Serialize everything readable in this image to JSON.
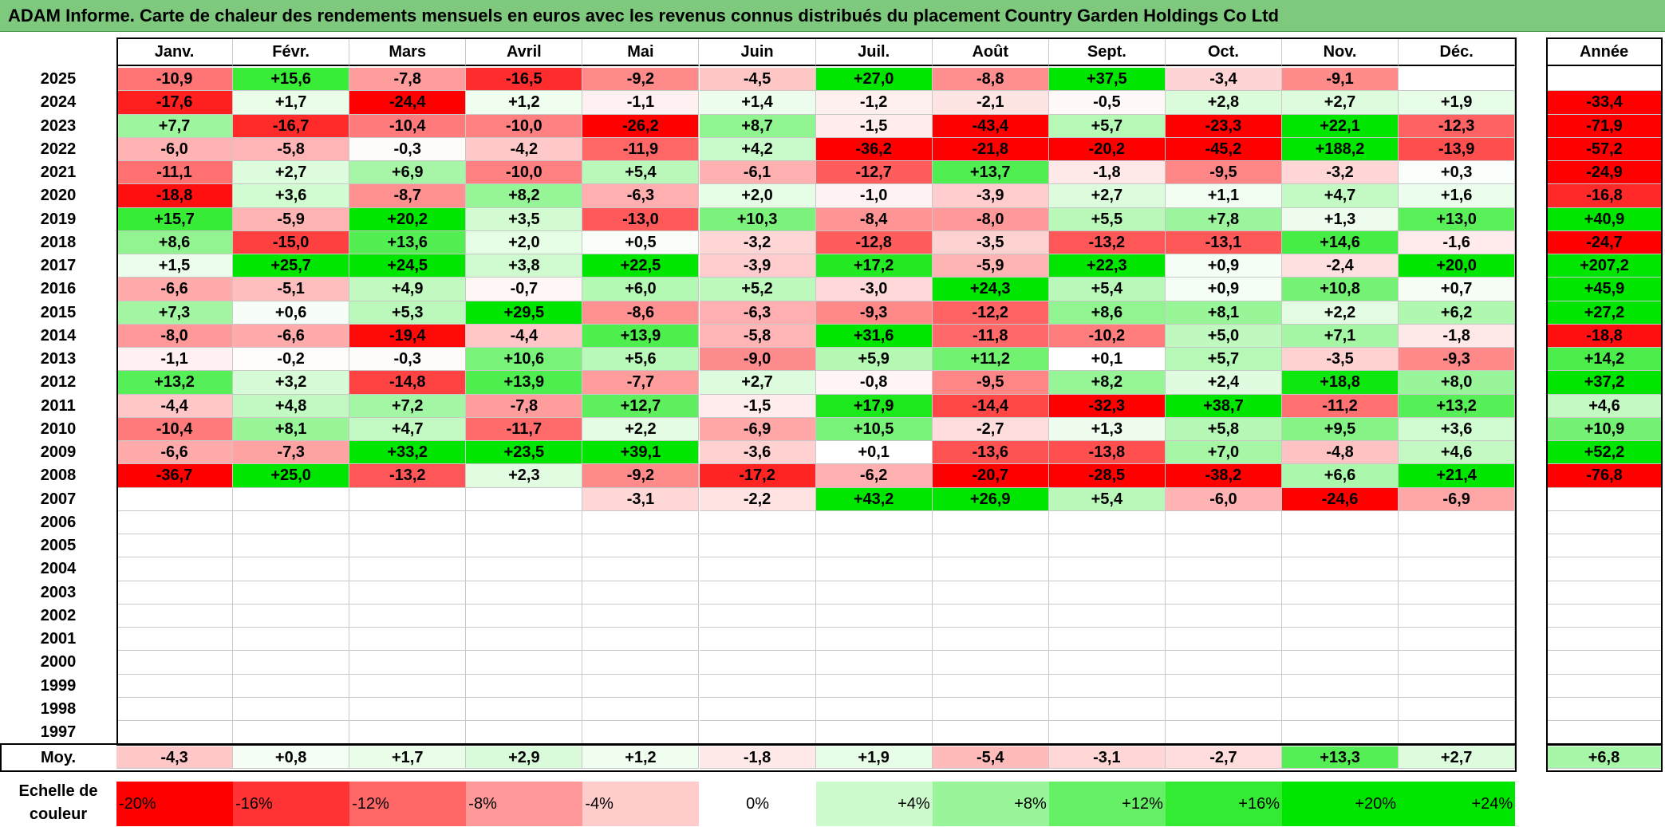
{
  "title": "ADAM Informe. Carte de chaleur des rendements mensuels en euros avec les revenus connus distribués du placement Country Garden Holdings Co Ltd",
  "chart_data": {
    "type": "heatmap",
    "months": [
      "Janv.",
      "Févr.",
      "Mars",
      "Avril",
      "Mai",
      "Juin",
      "Juil.",
      "Août",
      "Sept.",
      "Oct.",
      "Nov.",
      "Déc."
    ],
    "year_header": "Année",
    "rows": [
      {
        "year": "2025",
        "values": [
          "-10,9",
          "+15,6",
          "-7,8",
          "-16,5",
          "-9,2",
          "-4,5",
          "+27,0",
          "-8,8",
          "+37,5",
          "-3,4",
          "-9,1",
          ""
        ],
        "annual": ""
      },
      {
        "year": "2024",
        "values": [
          "-17,6",
          "+1,7",
          "-24,4",
          "+1,2",
          "-1,1",
          "+1,4",
          "-1,2",
          "-2,1",
          "-0,5",
          "+2,8",
          "+2,7",
          "+1,9"
        ],
        "annual": "-33,4"
      },
      {
        "year": "2023",
        "values": [
          "+7,7",
          "-16,7",
          "-10,4",
          "-10,0",
          "-26,2",
          "+8,7",
          "-1,5",
          "-43,4",
          "+5,7",
          "-23,3",
          "+22,1",
          "-12,3"
        ],
        "annual": "-71,9"
      },
      {
        "year": "2022",
        "values": [
          "-6,0",
          "-5,8",
          "-0,3",
          "-4,2",
          "-11,9",
          "+4,2",
          "-36,2",
          "-21,8",
          "-20,2",
          "-45,2",
          "+188,2",
          "-13,9"
        ],
        "annual": "-57,2"
      },
      {
        "year": "2021",
        "values": [
          "-11,1",
          "+2,7",
          "+6,9",
          "-10,0",
          "+5,4",
          "-6,1",
          "-12,7",
          "+13,7",
          "-1,8",
          "-9,5",
          "-3,2",
          "+0,3"
        ],
        "annual": "-24,9"
      },
      {
        "year": "2020",
        "values": [
          "-18,8",
          "+3,6",
          "-8,7",
          "+8,2",
          "-6,3",
          "+2,0",
          "-1,0",
          "-3,9",
          "+2,7",
          "+1,1",
          "+4,7",
          "+1,6"
        ],
        "annual": "-16,8"
      },
      {
        "year": "2019",
        "values": [
          "+15,7",
          "-5,9",
          "+20,2",
          "+3,5",
          "-13,0",
          "+10,3",
          "-8,4",
          "-8,0",
          "+5,5",
          "+7,8",
          "+1,3",
          "+13,0"
        ],
        "annual": "+40,9"
      },
      {
        "year": "2018",
        "values": [
          "+8,6",
          "-15,0",
          "+13,6",
          "+2,0",
          "+0,5",
          "-3,2",
          "-12,8",
          "-3,5",
          "-13,2",
          "-13,1",
          "+14,6",
          "-1,6"
        ],
        "annual": "-24,7"
      },
      {
        "year": "2017",
        "values": [
          "+1,5",
          "+25,7",
          "+24,5",
          "+3,8",
          "+22,5",
          "-3,9",
          "+17,2",
          "-5,9",
          "+22,3",
          "+0,9",
          "-2,4",
          "+20,0"
        ],
        "annual": "+207,2"
      },
      {
        "year": "2016",
        "values": [
          "-6,6",
          "-5,1",
          "+4,9",
          "-0,7",
          "+6,0",
          "+5,2",
          "-3,0",
          "+24,3",
          "+5,4",
          "+0,9",
          "+10,8",
          "+0,7"
        ],
        "annual": "+45,9"
      },
      {
        "year": "2015",
        "values": [
          "+7,3",
          "+0,6",
          "+5,3",
          "+29,5",
          "-8,6",
          "-6,3",
          "-9,3",
          "-12,2",
          "+8,6",
          "+8,1",
          "+2,2",
          "+6,2"
        ],
        "annual": "+27,2"
      },
      {
        "year": "2014",
        "values": [
          "-8,0",
          "-6,6",
          "-19,4",
          "-4,4",
          "+13,9",
          "-5,8",
          "+31,6",
          "-11,8",
          "-10,2",
          "+5,0",
          "+7,1",
          "-1,8"
        ],
        "annual": "-18,8"
      },
      {
        "year": "2013",
        "values": [
          "-1,1",
          "-0,2",
          "-0,3",
          "+10,6",
          "+5,6",
          "-9,0",
          "+5,9",
          "+11,2",
          "+0,1",
          "+5,7",
          "-3,5",
          "-9,3"
        ],
        "annual": "+14,2"
      },
      {
        "year": "2012",
        "values": [
          "+13,2",
          "+3,2",
          "-14,8",
          "+13,9",
          "-7,7",
          "+2,7",
          "-0,8",
          "-9,5",
          "+8,2",
          "+2,4",
          "+18,8",
          "+8,0"
        ],
        "annual": "+37,2"
      },
      {
        "year": "2011",
        "values": [
          "-4,4",
          "+4,8",
          "+7,2",
          "-7,8",
          "+12,7",
          "-1,5",
          "+17,9",
          "-14,4",
          "-32,3",
          "+38,7",
          "-11,2",
          "+13,2"
        ],
        "annual": "+4,6"
      },
      {
        "year": "2010",
        "values": [
          "-10,4",
          "+8,1",
          "+4,7",
          "-11,7",
          "+2,2",
          "-6,9",
          "+10,5",
          "-2,7",
          "+1,3",
          "+5,8",
          "+9,5",
          "+3,6"
        ],
        "annual": "+10,9"
      },
      {
        "year": "2009",
        "values": [
          "-6,6",
          "-7,3",
          "+33,2",
          "+23,5",
          "+39,1",
          "-3,6",
          "+0,1",
          "-13,6",
          "-13,8",
          "+7,0",
          "-4,8",
          "+4,6"
        ],
        "annual": "+52,2"
      },
      {
        "year": "2008",
        "values": [
          "-36,7",
          "+25,0",
          "-13,2",
          "+2,3",
          "-9,2",
          "-17,2",
          "-6,2",
          "-20,7",
          "-28,5",
          "-38,2",
          "+6,6",
          "+21,4"
        ],
        "annual": "-76,8"
      },
      {
        "year": "2007",
        "values": [
          "",
          "",
          "",
          "",
          "-3,1",
          "-2,2",
          "+43,2",
          "+26,9",
          "+5,4",
          "-6,0",
          "-24,6",
          "-6,9"
        ],
        "annual": ""
      },
      {
        "year": "2006",
        "values": [
          "",
          "",
          "",
          "",
          "",
          "",
          "",
          "",
          "",
          "",
          "",
          ""
        ],
        "annual": ""
      },
      {
        "year": "2005",
        "values": [
          "",
          "",
          "",
          "",
          "",
          "",
          "",
          "",
          "",
          "",
          "",
          ""
        ],
        "annual": ""
      },
      {
        "year": "2004",
        "values": [
          "",
          "",
          "",
          "",
          "",
          "",
          "",
          "",
          "",
          "",
          "",
          ""
        ],
        "annual": ""
      },
      {
        "year": "2003",
        "values": [
          "",
          "",
          "",
          "",
          "",
          "",
          "",
          "",
          "",
          "",
          "",
          ""
        ],
        "annual": ""
      },
      {
        "year": "2002",
        "values": [
          "",
          "",
          "",
          "",
          "",
          "",
          "",
          "",
          "",
          "",
          "",
          ""
        ],
        "annual": ""
      },
      {
        "year": "2001",
        "values": [
          "",
          "",
          "",
          "",
          "",
          "",
          "",
          "",
          "",
          "",
          "",
          ""
        ],
        "annual": ""
      },
      {
        "year": "2000",
        "values": [
          "",
          "",
          "",
          "",
          "",
          "",
          "",
          "",
          "",
          "",
          "",
          ""
        ],
        "annual": ""
      },
      {
        "year": "1999",
        "values": [
          "",
          "",
          "",
          "",
          "",
          "",
          "",
          "",
          "",
          "",
          "",
          ""
        ],
        "annual": ""
      },
      {
        "year": "1998",
        "values": [
          "",
          "",
          "",
          "",
          "",
          "",
          "",
          "",
          "",
          "",
          "",
          ""
        ],
        "annual": ""
      },
      {
        "year": "1997",
        "values": [
          "",
          "",
          "",
          "",
          "",
          "",
          "",
          "",
          "",
          "",
          "",
          ""
        ],
        "annual": ""
      }
    ],
    "average": {
      "label": "Moy.",
      "values": [
        "-4,3",
        "+0,8",
        "+1,7",
        "+2,9",
        "+1,2",
        "-1,8",
        "+1,9",
        "-5,4",
        "-3,1",
        "-2,7",
        "+13,3",
        "+2,7"
      ],
      "annual": "+6,8"
    },
    "color_scale": {
      "label": "Echelle de couleur",
      "stops": [
        "-20%",
        "-16%",
        "-12%",
        "-8%",
        "-4%",
        "0%",
        "+4%",
        "+8%",
        "+12%",
        "+16%",
        "+20%",
        "+24%"
      ],
      "stop_values": [
        -20,
        -16,
        -12,
        -8,
        -4,
        0,
        4,
        8,
        12,
        16,
        20,
        24
      ],
      "negative_color": "#ff0000",
      "positive_color": "#00e600",
      "neutral_color": "#ffffff"
    }
  }
}
